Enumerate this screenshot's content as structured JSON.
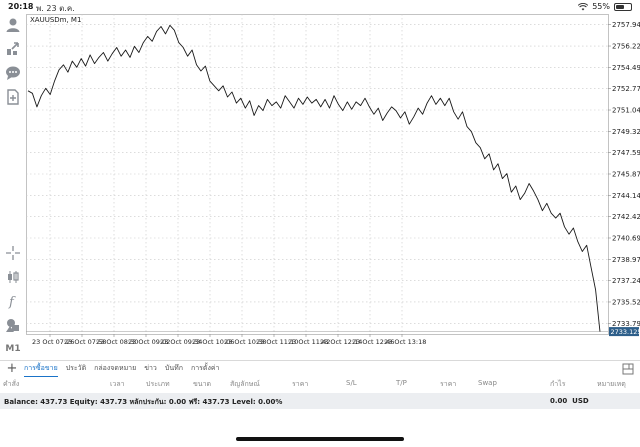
{
  "status": {
    "time": "20:18",
    "date": "พ. 23 ต.ค.",
    "battery": "55%",
    "battery_level": 0.55
  },
  "chart": {
    "symbol": "XAUUSDm, M1",
    "current_price": "2733.125",
    "colors": {
      "line": "#1a1a1a",
      "grid": "#c8c8c8",
      "price_tag_bg": "#2e5f8a",
      "price_tag_text": "#ffffff"
    }
  },
  "toolbar": {
    "items": [
      {
        "name": "account-icon"
      },
      {
        "name": "trade-icon"
      },
      {
        "name": "chat-icon"
      },
      {
        "name": "new-order-icon"
      },
      {
        "name": "crosshair-icon"
      },
      {
        "name": "chart-type-icon"
      },
      {
        "name": "indicators-icon"
      },
      {
        "name": "objects-icon"
      }
    ],
    "timeframe": "M1"
  },
  "chart_data": {
    "type": "line",
    "title": "XAUUSDm, M1",
    "xlabel": "",
    "ylabel": "",
    "x_ticks": [
      "23 Oct 07:26",
      "23 Oct 07:58",
      "23 Oct 08:30",
      "23 Oct 09:02",
      "23 Oct 09:34",
      "23 Oct 10:06",
      "23 Oct 10:38",
      "23 Oct 11:10",
      "23 Oct 11:42",
      "23 Oct 12:14",
      "23 Oct 12:46",
      "23 Oct 13:18"
    ],
    "y_ticks": [
      "2757.945",
      "2756.220",
      "2754.495",
      "2752.770",
      "2751.045",
      "2749.320",
      "2747.595",
      "2745.870",
      "2744.145",
      "2742.420",
      "2740.695",
      "2738.970",
      "2737.245",
      "2735.520",
      "2733.795"
    ],
    "ylim": [
      2732.93,
      2758.81
    ],
    "grid": true,
    "series": [
      {
        "values": [
          2752.6,
          2752.4,
          2751.3,
          2752.2,
          2752.8,
          2752.3,
          2753.4,
          2754.3,
          2754.7,
          2754.1,
          2755.0,
          2754.5,
          2755.2,
          2754.6,
          2755.5,
          2754.8,
          2755.3,
          2755.7,
          2755.0,
          2755.6,
          2756.1,
          2755.4,
          2755.9,
          2755.3,
          2756.2,
          2755.7,
          2756.5,
          2757.0,
          2756.6,
          2757.4,
          2757.8,
          2757.2,
          2757.9,
          2757.5,
          2756.5,
          2756.1,
          2755.4,
          2755.9,
          2754.7,
          2754.2,
          2754.6,
          2753.4,
          2753.0,
          2752.6,
          2753.0,
          2752.1,
          2752.5,
          2751.6,
          2752.0,
          2751.2,
          2751.8,
          2750.6,
          2751.4,
          2751.0,
          2751.9,
          2751.4,
          2751.7,
          2751.2,
          2752.2,
          2751.7,
          2751.2,
          2752.0,
          2751.5,
          2752.1,
          2751.6,
          2751.9,
          2751.3,
          2751.9,
          2751.2,
          2752.2,
          2751.5,
          2751.0,
          2751.7,
          2751.1,
          2751.7,
          2751.4,
          2752.0,
          2751.3,
          2750.7,
          2751.2,
          2750.2,
          2750.8,
          2751.3,
          2751.0,
          2750.4,
          2750.9,
          2749.9,
          2750.5,
          2751.2,
          2750.7,
          2751.6,
          2752.2,
          2751.5,
          2752.0,
          2751.4,
          2752.0,
          2750.9,
          2750.3,
          2750.9,
          2749.7,
          2749.3,
          2748.4,
          2748.0,
          2747.1,
          2747.5,
          2746.2,
          2746.7,
          2745.5,
          2745.9,
          2744.4,
          2744.9,
          2743.8,
          2744.3,
          2745.1,
          2744.5,
          2743.8,
          2742.9,
          2743.5,
          2742.7,
          2742.3,
          2742.7,
          2741.6,
          2741.0,
          2741.5,
          2740.4,
          2739.6,
          2740.1,
          2738.3,
          2736.5,
          2733.1
        ]
      }
    ]
  },
  "tabs": [
    {
      "label": "การซื้อขาย",
      "active": true
    },
    {
      "label": "ประวัติ",
      "active": false
    },
    {
      "label": "กล่องจดหมาย",
      "active": false
    },
    {
      "label": "ข่าว",
      "active": false
    },
    {
      "label": "บันทึก",
      "active": false
    },
    {
      "label": "การตั้งค่า",
      "active": false
    }
  ],
  "columns": [
    "คำสั่ง",
    "เวลา",
    "ประเภท",
    "ขนาด",
    "สัญลักษณ์",
    "ราคา",
    "S/L",
    "T/P",
    "ราคา",
    "Swap",
    "กำไร",
    "หมายเหตุ"
  ],
  "balance": {
    "text": "Balance: 437.73 Equity: 437.73 หลักประกัน: 0.00 ฟรี: 437.73 Level: 0.00%",
    "profit": "0.00",
    "currency": "USD"
  }
}
